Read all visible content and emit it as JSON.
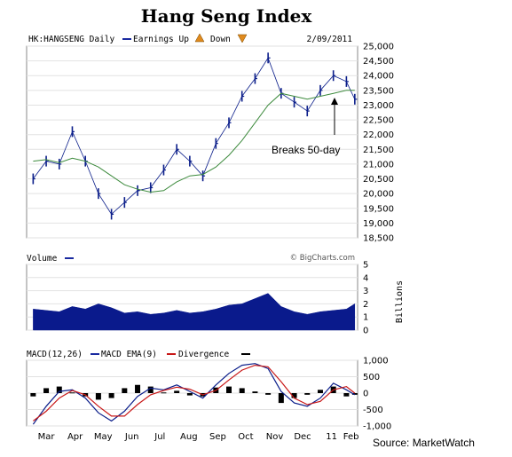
{
  "page_title": "Hang Seng Index",
  "source": "Source: MarketWatch",
  "chart_data": [
    {
      "type": "ohlc",
      "header": {
        "symbol_label": "HK:HANGSENG Daily",
        "ma_legend": "",
        "earnings_up": "Earnings Up",
        "earnings_down": "Down",
        "date": "2/09/2011"
      },
      "annotation": "Breaks 50-day",
      "ylim": [
        18500,
        25000
      ],
      "y_ticks": [
        "25,000",
        "24,500",
        "24,000",
        "23,500",
        "23,000",
        "22,500",
        "22,000",
        "21,500",
        "21,000",
        "20,500",
        "20,000",
        "19,500",
        "19,000",
        "18,500"
      ],
      "x_ticks": [
        "Mar",
        "Apr",
        "May",
        "Jun",
        "Jul",
        "Aug",
        "Sep",
        "Oct",
        "Nov",
        "Dec",
        "11",
        "Feb"
      ],
      "x": [
        "2010-03-01",
        "2010-03-15",
        "2010-03-29",
        "2010-04-12",
        "2010-04-26",
        "2010-05-10",
        "2010-05-24",
        "2010-06-07",
        "2010-06-21",
        "2010-07-05",
        "2010-07-19",
        "2010-08-02",
        "2010-08-16",
        "2010-08-30",
        "2010-09-13",
        "2010-09-27",
        "2010-10-11",
        "2010-10-25",
        "2010-11-08",
        "2010-11-22",
        "2010-12-06",
        "2010-12-20",
        "2011-01-03",
        "2011-01-17",
        "2011-01-31",
        "2011-02-09"
      ],
      "close": [
        20500,
        21100,
        21000,
        22100,
        21100,
        20000,
        19300,
        19700,
        20100,
        20200,
        20800,
        21500,
        21100,
        20600,
        21700,
        22400,
        23300,
        23900,
        24600,
        23400,
        23100,
        22800,
        23500,
        24000,
        23800,
        23200
      ],
      "moving_average": [
        21100,
        21150,
        21050,
        21200,
        21100,
        20900,
        20600,
        20300,
        20150,
        20050,
        20100,
        20400,
        20600,
        20650,
        20900,
        21300,
        21800,
        22400,
        23000,
        23400,
        23300,
        23200,
        23300,
        23400,
        23500,
        23500
      ]
    },
    {
      "type": "bar",
      "title": "Volume",
      "unit": "Billions",
      "ylim": [
        0,
        5
      ],
      "y_ticks": [
        "5",
        "4",
        "3",
        "2",
        "1",
        "0"
      ],
      "credit": "© BigCharts.com",
      "x": [
        "2010-03-01",
        "2010-03-15",
        "2010-03-29",
        "2010-04-12",
        "2010-04-26",
        "2010-05-10",
        "2010-05-24",
        "2010-06-07",
        "2010-06-21",
        "2010-07-05",
        "2010-07-19",
        "2010-08-02",
        "2010-08-16",
        "2010-08-30",
        "2010-09-13",
        "2010-09-27",
        "2010-10-11",
        "2010-10-25",
        "2010-11-08",
        "2010-11-22",
        "2010-12-06",
        "2010-12-20",
        "2011-01-03",
        "2011-01-17",
        "2011-01-31",
        "2011-02-09"
      ],
      "values": [
        1.6,
        1.5,
        1.4,
        1.8,
        1.6,
        2.0,
        1.7,
        1.3,
        1.4,
        1.2,
        1.3,
        1.5,
        1.3,
        1.4,
        1.6,
        1.9,
        2.0,
        2.4,
        2.8,
        1.8,
        1.4,
        1.2,
        1.4,
        1.5,
        1.6,
        2.0
      ]
    },
    {
      "type": "line",
      "title": "MACD(12,26)",
      "legend": [
        "MACD EMA(9)",
        "Divergence"
      ],
      "ylim": [
        -1000,
        1000
      ],
      "y_ticks": [
        "1,000",
        "500",
        "0",
        "-500",
        "-1,000"
      ],
      "x": [
        "2010-03-01",
        "2010-03-15",
        "2010-03-29",
        "2010-04-12",
        "2010-04-26",
        "2010-05-10",
        "2010-05-24",
        "2010-06-07",
        "2010-06-21",
        "2010-07-05",
        "2010-07-19",
        "2010-08-02",
        "2010-08-16",
        "2010-08-30",
        "2010-09-13",
        "2010-09-27",
        "2010-10-11",
        "2010-10-25",
        "2010-11-08",
        "2010-11-22",
        "2010-12-06",
        "2010-12-20",
        "2011-01-03",
        "2011-01-17",
        "2011-01-31",
        "2011-02-09"
      ],
      "series": [
        {
          "name": "MACD(12,26)",
          "color": "#0b1e8a",
          "values": [
            -950,
            -400,
            50,
            100,
            -150,
            -600,
            -850,
            -550,
            -100,
            150,
            100,
            250,
            50,
            -150,
            250,
            600,
            850,
            900,
            750,
            50,
            -300,
            -400,
            -150,
            300,
            100,
            -50
          ]
        },
        {
          "name": "MACD EMA(9)",
          "color": "#c81818",
          "values": [
            -850,
            -550,
            -150,
            80,
            -50,
            -400,
            -700,
            -700,
            -350,
            -50,
            80,
            180,
            120,
            -50,
            80,
            400,
            700,
            850,
            800,
            350,
            -150,
            -350,
            -250,
            100,
            200,
            0
          ]
        },
        {
          "name": "Divergence",
          "color": "#000000",
          "values": [
            -100,
            150,
            200,
            20,
            -100,
            -200,
            -150,
            150,
            250,
            200,
            20,
            70,
            -70,
            -100,
            170,
            200,
            150,
            50,
            -50,
            -300,
            -150,
            -50,
            100,
            200,
            -100,
            -50
          ]
        }
      ]
    }
  ]
}
